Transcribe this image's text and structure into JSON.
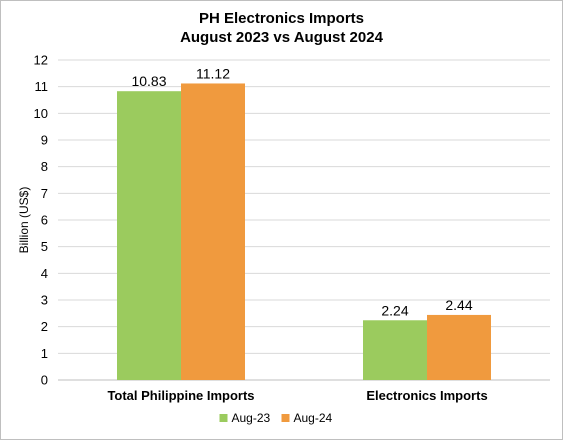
{
  "chart_data": {
    "type": "bar",
    "title_line1": "PH Electronics Imports",
    "title_line2": "August 2023 vs August 2024",
    "ylabel": "Billion (US$)",
    "xlabel": "",
    "ylim": [
      0,
      12
    ],
    "yticks": [
      "0",
      "1",
      "2",
      "3",
      "4",
      "5",
      "6",
      "7",
      "8",
      "9",
      "10",
      "11",
      "12"
    ],
    "grid": true,
    "legend_position": "bottom",
    "categories": [
      "Total Philippine Imports",
      "Electronics Imports"
    ],
    "series": [
      {
        "name": "Aug-23",
        "color": "#9BCB5E",
        "values": [
          10.83,
          2.24
        ],
        "labels": [
          "10.83",
          "2.24"
        ]
      },
      {
        "name": "Aug-24",
        "color": "#F09A3E",
        "values": [
          11.12,
          2.44
        ],
        "labels": [
          "11.12",
          "2.44"
        ]
      }
    ]
  }
}
